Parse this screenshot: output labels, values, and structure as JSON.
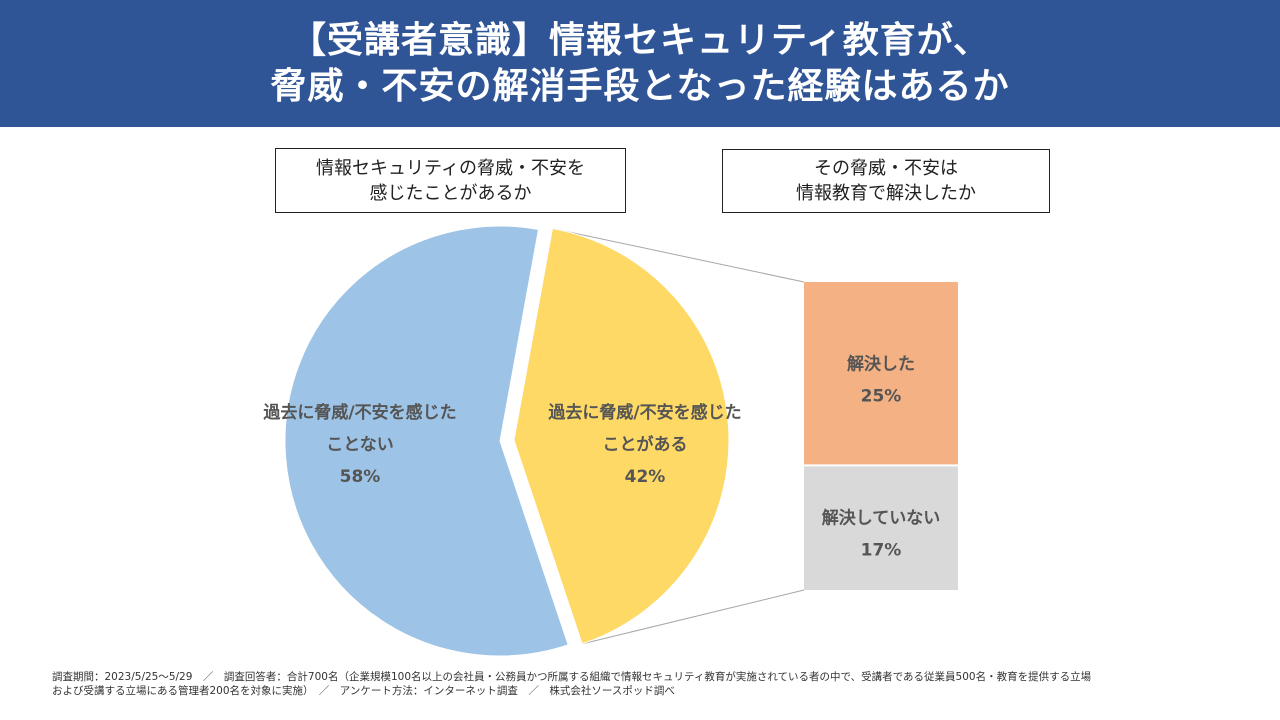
{
  "header": {
    "title_line1": "【受講者意識】情報セキュリティ教育が、",
    "title_line2": "脅威・不安の解消手段となった経験はあるか"
  },
  "boxes": {
    "left": {
      "line1": "情報セキュリティの脅威・不安を",
      "line2": "感じたことがあるか"
    },
    "right": {
      "line1": "その脅威・不安は",
      "line2": "情報教育で解決したか"
    }
  },
  "chart_data": [
    {
      "type": "pie",
      "title": "情報セキュリティの脅威・不安を感じたことがあるか",
      "slices": [
        {
          "label_lines": [
            "過去に脅威/不安を感じた",
            "ことない"
          ],
          "value": 58,
          "display": "58%",
          "color": "#9dc3e6"
        },
        {
          "label_lines": [
            "過去に脅威/不安を感じた",
            "ことがある"
          ],
          "value": 42,
          "display": "42%",
          "color": "#ffd966",
          "exploded": true
        }
      ]
    },
    {
      "type": "bar",
      "stacked": true,
      "title": "その脅威・不安は情報教育で解決したか",
      "segments": [
        {
          "label": "解決した",
          "value": 25,
          "display": "25%",
          "color": "#f4b183"
        },
        {
          "label": "解決していない",
          "value": 17,
          "display": "17%",
          "color": "#d9d9d9"
        }
      ]
    }
  ],
  "footnote": {
    "line1": "調査期間：2023/5/25〜5/29　／　調査回答者：合計700名（企業規模100名以上の会社員・公務員かつ所属する組織で情報セキュリティ教育が実施されている者の中で、受講者である従業員500名・教育を提供する立場",
    "line2": "および受講する立場にある管理者200名を対象に実施）　／　アンケート方法：インターネット調査　／　株式会社ソースポッド調べ"
  }
}
